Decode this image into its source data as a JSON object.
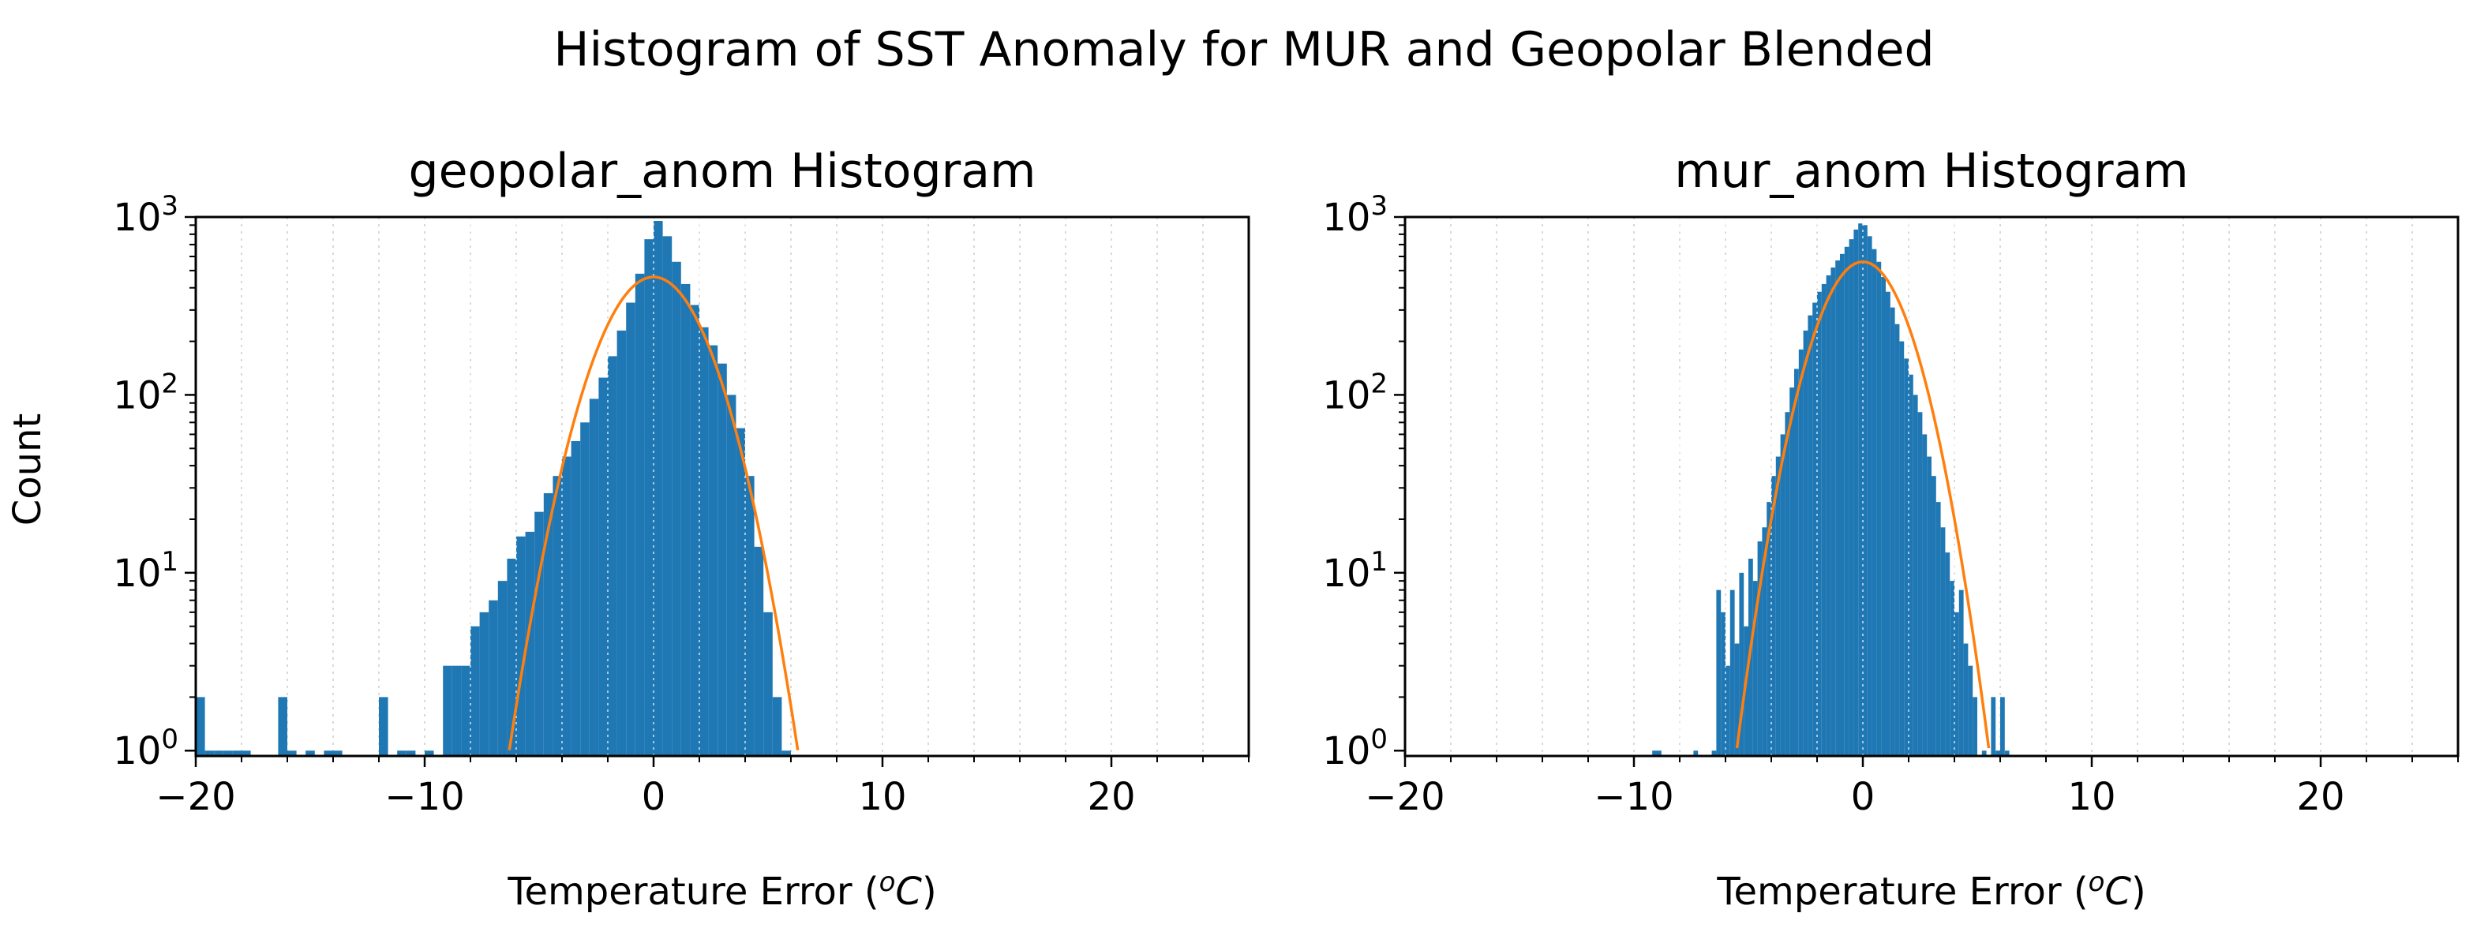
{
  "suptitle": "Histogram of SST Anomaly for MUR and Geopolar Blended",
  "ylabel": "Count",
  "colors": {
    "bar": "#1f77b4",
    "fit": "#ff7f0e",
    "grid": "#d9d9d9"
  },
  "chart_data": [
    {
      "type": "bar",
      "title": "geopolar_anom Histogram",
      "xlabel_main": "Temperature Error (",
      "xlabel_sup": "o",
      "xlabel_unit": "C",
      "xlabel_close": ")",
      "xlim": [
        -20,
        26
      ],
      "ylim_log10": [
        -0.03,
        3.0
      ],
      "yscale": "log",
      "grid": true,
      "xticks": [
        -20,
        -10,
        0,
        10,
        20
      ],
      "xtick_labels": [
        "−20",
        "−10",
        "0",
        "10",
        "20"
      ],
      "ytick_base": "10",
      "yticks_exp": [
        "0",
        "1",
        "2",
        "3"
      ],
      "bin_width": 0.4,
      "bars": [
        [
          -19.8,
          2
        ],
        [
          -19.4,
          1
        ],
        [
          -19.0,
          1
        ],
        [
          -18.6,
          1
        ],
        [
          -18.2,
          1
        ],
        [
          -17.8,
          1
        ],
        [
          -16.2,
          2
        ],
        [
          -15.8,
          1
        ],
        [
          -15.0,
          1
        ],
        [
          -14.2,
          1
        ],
        [
          -13.8,
          1
        ],
        [
          -11.8,
          2
        ],
        [
          -11.0,
          1
        ],
        [
          -10.6,
          1
        ],
        [
          -9.8,
          1
        ],
        [
          -9.0,
          3
        ],
        [
          -8.6,
          3
        ],
        [
          -8.2,
          3
        ],
        [
          -7.8,
          5
        ],
        [
          -7.4,
          6
        ],
        [
          -7.0,
          7
        ],
        [
          -6.6,
          9
        ],
        [
          -6.2,
          12
        ],
        [
          -5.8,
          16
        ],
        [
          -5.4,
          17
        ],
        [
          -5.0,
          22
        ],
        [
          -4.6,
          28
        ],
        [
          -4.2,
          35
        ],
        [
          -3.8,
          45
        ],
        [
          -3.4,
          55
        ],
        [
          -3.0,
          70
        ],
        [
          -2.6,
          95
        ],
        [
          -2.2,
          125
        ],
        [
          -1.8,
          165
        ],
        [
          -1.4,
          230
        ],
        [
          -1.0,
          330
        ],
        [
          -0.6,
          480
        ],
        [
          -0.2,
          750
        ],
        [
          0.2,
          950
        ],
        [
          0.6,
          780
        ],
        [
          1.0,
          560
        ],
        [
          1.4,
          420
        ],
        [
          1.8,
          320
        ],
        [
          2.2,
          240
        ],
        [
          2.6,
          190
        ],
        [
          3.0,
          150
        ],
        [
          3.4,
          100
        ],
        [
          3.8,
          65
        ],
        [
          4.2,
          35
        ],
        [
          4.6,
          14
        ],
        [
          5.0,
          6
        ],
        [
          5.4,
          2
        ],
        [
          5.8,
          1
        ]
      ],
      "fit": {
        "amplitude": 460,
        "mean": 0.0,
        "sigma": 1.8
      }
    },
    {
      "type": "bar",
      "title": "mur_anom Histogram",
      "xlabel_main": "Temperature Error (",
      "xlabel_sup": "o",
      "xlabel_unit": "C",
      "xlabel_close": ")",
      "xlim": [
        -20,
        26
      ],
      "ylim_log10": [
        -0.03,
        3.0
      ],
      "yscale": "log",
      "grid": true,
      "xticks": [
        -20,
        -10,
        0,
        10,
        20
      ],
      "xtick_labels": [
        "−20",
        "−10",
        "0",
        "10",
        "20"
      ],
      "ytick_base": "10",
      "yticks_exp": [
        "0",
        "1",
        "2",
        "3"
      ],
      "bin_width": 0.2,
      "bars": [
        [
          -9.1,
          1
        ],
        [
          -8.9,
          1
        ],
        [
          -7.3,
          1
        ],
        [
          -6.5,
          1
        ],
        [
          -6.3,
          8
        ],
        [
          -6.1,
          6
        ],
        [
          -5.9,
          3
        ],
        [
          -5.7,
          8
        ],
        [
          -5.5,
          4
        ],
        [
          -5.3,
          10
        ],
        [
          -5.1,
          5
        ],
        [
          -4.9,
          12
        ],
        [
          -4.7,
          9
        ],
        [
          -4.5,
          15
        ],
        [
          -4.3,
          18
        ],
        [
          -4.1,
          25
        ],
        [
          -3.9,
          35
        ],
        [
          -3.7,
          45
        ],
        [
          -3.5,
          60
        ],
        [
          -3.3,
          80
        ],
        [
          -3.1,
          110
        ],
        [
          -2.9,
          140
        ],
        [
          -2.7,
          180
        ],
        [
          -2.5,
          230
        ],
        [
          -2.3,
          280
        ],
        [
          -2.1,
          330
        ],
        [
          -1.9,
          380
        ],
        [
          -1.7,
          420
        ],
        [
          -1.5,
          470
        ],
        [
          -1.3,
          520
        ],
        [
          -1.1,
          570
        ],
        [
          -0.9,
          620
        ],
        [
          -0.7,
          680
        ],
        [
          -0.5,
          750
        ],
        [
          -0.3,
          850
        ],
        [
          -0.1,
          920
        ],
        [
          0.1,
          900
        ],
        [
          0.3,
          780
        ],
        [
          0.5,
          660
        ],
        [
          0.7,
          560
        ],
        [
          0.9,
          460
        ],
        [
          1.1,
          380
        ],
        [
          1.3,
          310
        ],
        [
          1.5,
          250
        ],
        [
          1.7,
          200
        ],
        [
          1.9,
          160
        ],
        [
          2.1,
          130
        ],
        [
          2.3,
          100
        ],
        [
          2.5,
          80
        ],
        [
          2.7,
          60
        ],
        [
          2.9,
          45
        ],
        [
          3.1,
          35
        ],
        [
          3.3,
          25
        ],
        [
          3.5,
          18
        ],
        [
          3.7,
          13
        ],
        [
          3.9,
          9
        ],
        [
          4.1,
          6
        ],
        [
          4.3,
          8
        ],
        [
          4.5,
          4
        ],
        [
          4.7,
          3
        ],
        [
          4.9,
          2
        ],
        [
          5.3,
          1
        ],
        [
          5.7,
          2
        ],
        [
          5.9,
          1
        ],
        [
          6.1,
          2
        ],
        [
          6.3,
          1
        ]
      ],
      "fit": {
        "amplitude": 560,
        "mean": 0.0,
        "sigma": 1.55
      }
    }
  ]
}
